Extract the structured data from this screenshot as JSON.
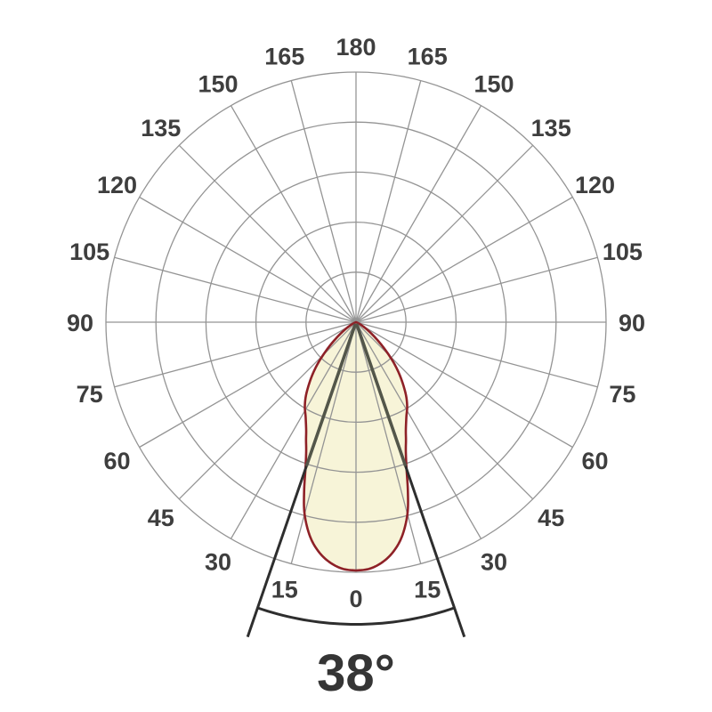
{
  "page": {
    "background": "#ffffff",
    "description": "Polar photometric luminous intensity distribution diagram with 38 degree beam angle"
  },
  "chart_data": {
    "type": "polar",
    "subtype": "photometric-intensity-distribution",
    "title": "",
    "beam_angle_label": "38°",
    "beam_half_angle_deg": 19,
    "angle_tick_step_deg": 15,
    "angle_tick_labels": [
      "0",
      "15",
      "30",
      "45",
      "60",
      "75",
      "90",
      "105",
      "120",
      "135",
      "150",
      "165",
      "180"
    ],
    "angle_tick_layout": "0 at bottom, 180 at top, 15-165 mirrored on left and right sides",
    "radial_gridline_count": 5,
    "grid_on": true,
    "curve": {
      "name": "luminous-intensity-lobe",
      "theta_deg": [
        0,
        3,
        6,
        9,
        12,
        15,
        17,
        19,
        21,
        23,
        25,
        28,
        31,
        34,
        37,
        40,
        43,
        46,
        50,
        54,
        58,
        62,
        66,
        70
      ],
      "r_norm": [
        1.0,
        0.995,
        0.975,
        0.94,
        0.885,
        0.8,
        0.715,
        0.625,
        0.56,
        0.515,
        0.475,
        0.432,
        0.4,
        0.362,
        0.316,
        0.27,
        0.222,
        0.172,
        0.115,
        0.072,
        0.042,
        0.022,
        0.009,
        0.0
      ]
    },
    "colors": {
      "grid": "#949494",
      "labels": "#3e3e3e",
      "lobe_fill": "#f7f4d8",
      "lobe_outline": "#8e2127",
      "beam_line_inner": "#53564a",
      "beam_line_outer": "#2e2e2e",
      "arc": "#2e2e2e",
      "beam_text": "#353535",
      "background": "#ffffff"
    }
  }
}
